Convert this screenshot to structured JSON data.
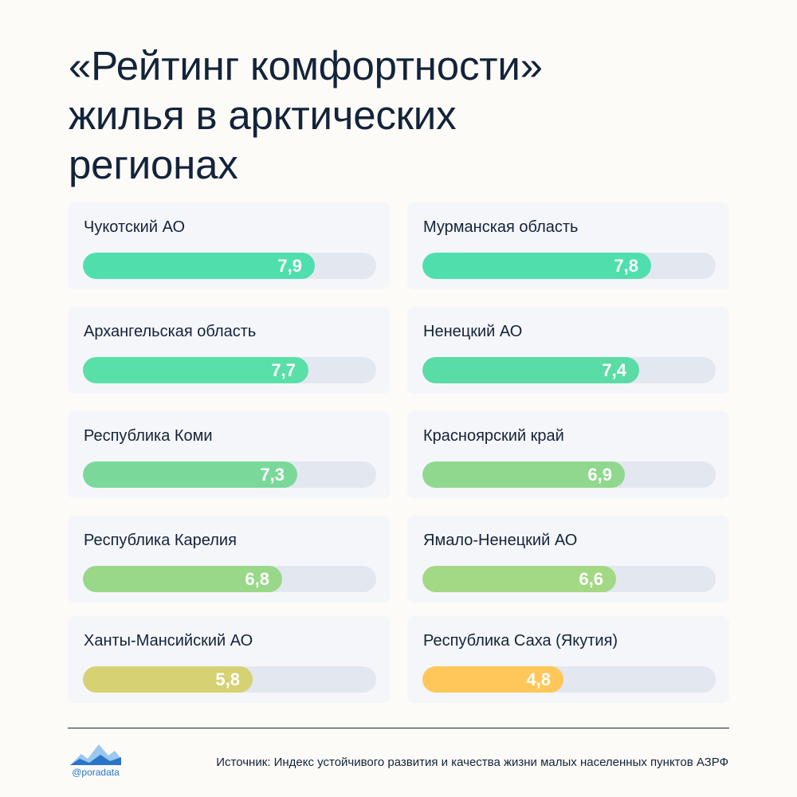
{
  "title_lines": [
    "«Рейтинг комфортности»",
    "жилья в арктических",
    "регионах"
  ],
  "chart_data": {
    "type": "bar",
    "orientation": "horizontal",
    "categories": [
      "Чукотский АО",
      "Мурманская область",
      "Архангельская область",
      "Ненецкий АО",
      "Республика Коми",
      "Красноярский край",
      "Республика Карелия",
      "Ямало-Ненецкий АО",
      "Ханты-Мансийский АО",
      "Республика Саха (Якутия)"
    ],
    "values": [
      7.9,
      7.8,
      7.7,
      7.4,
      7.3,
      6.9,
      6.8,
      6.6,
      5.8,
      4.8
    ],
    "value_labels": [
      "7,9",
      "7,8",
      "7,7",
      "7,4",
      "7,3",
      "6,9",
      "6,8",
      "6,6",
      "5,8",
      "4,8"
    ],
    "colors": [
      "#4fdfad",
      "#4fdfad",
      "#59dfa8",
      "#59dca5",
      "#7ad99a",
      "#8fd88e",
      "#98d888",
      "#a3d884",
      "#d6d273",
      "#ffc75a"
    ],
    "xlim": [
      0,
      10
    ],
    "layout": "two-column cards, one bar per card"
  },
  "footer": {
    "logo_text": "@poradata",
    "source": "Источник: Индекс устойчивого развития и качества жизни малых населенных пунктов АЗРФ"
  }
}
